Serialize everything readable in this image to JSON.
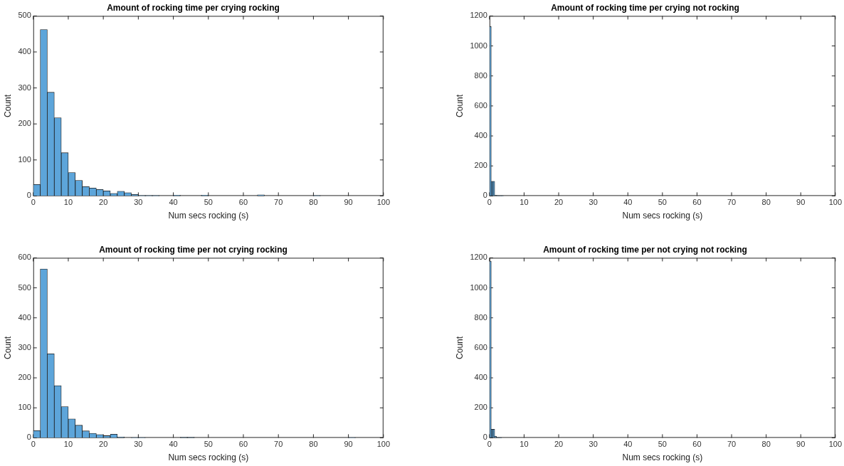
{
  "chart_data": [
    {
      "type": "histogram",
      "title": "Amount of rocking time per crying rocking",
      "xlabel": "Num secs rocking (s)",
      "ylabel": "Count",
      "color": "#5da5da",
      "bins": [
        0,
        2,
        4,
        6,
        8,
        10,
        12,
        14,
        16,
        18,
        20,
        22,
        24,
        26,
        28,
        30,
        32,
        34,
        36,
        38,
        40,
        42,
        44,
        46,
        48,
        50,
        52,
        54,
        56,
        58,
        60,
        62,
        64,
        66,
        68,
        70,
        72,
        74,
        76,
        78,
        80,
        82,
        84,
        86,
        88,
        90,
        92,
        94,
        96,
        98,
        100
      ],
      "values": [
        32,
        462,
        288,
        217,
        120,
        65,
        43,
        26,
        22,
        18,
        14,
        7,
        13,
        9,
        4,
        1,
        1,
        1,
        0,
        0,
        2,
        0,
        0,
        0,
        2,
        0,
        0,
        0,
        0,
        0,
        0,
        0,
        3,
        0,
        0,
        0,
        0,
        0,
        0,
        0,
        1,
        0,
        0,
        0,
        0,
        0,
        0,
        0,
        0,
        0
      ],
      "xlim": [
        0,
        100
      ],
      "xticks": [
        0,
        10,
        20,
        30,
        40,
        50,
        60,
        70,
        80,
        90,
        100
      ],
      "ylim": [
        0,
        500
      ],
      "yticks": [
        0,
        100,
        200,
        300,
        400,
        500
      ]
    },
    {
      "type": "histogram",
      "title": "Amount of rocking time per crying not rocking",
      "xlabel": "Num secs rocking (s)",
      "ylabel": "Count",
      "color": "#5da5da",
      "bins": [
        0,
        0.5,
        1,
        1.5,
        2,
        2.5,
        3,
        3.5,
        4,
        4.5,
        5
      ],
      "values": [
        1130,
        98,
        98,
        4,
        3,
        2,
        1,
        1,
        0,
        0
      ],
      "xlim": [
        0,
        100
      ],
      "xticks": [
        0,
        10,
        20,
        30,
        40,
        50,
        60,
        70,
        80,
        90,
        100
      ],
      "ylim": [
        0,
        1200
      ],
      "yticks": [
        0,
        200,
        400,
        600,
        800,
        1000,
        1200
      ]
    },
    {
      "type": "histogram",
      "title": "Amount of rocking time per not crying rocking",
      "xlabel": "Num secs rocking (s)",
      "ylabel": "Count",
      "color": "#5da5da",
      "bins": [
        0,
        2,
        4,
        6,
        8,
        10,
        12,
        14,
        16,
        18,
        20,
        22,
        24,
        26,
        28,
        30,
        32,
        34,
        36,
        38,
        40,
        42,
        44,
        46,
        48,
        50,
        52,
        54,
        56,
        58,
        60,
        62,
        64,
        66,
        68,
        70,
        72,
        74,
        76,
        78,
        80,
        82,
        84,
        86,
        88,
        90,
        92,
        94,
        96,
        98,
        100
      ],
      "values": [
        24,
        563,
        280,
        174,
        104,
        63,
        42,
        23,
        15,
        11,
        7,
        12,
        3,
        0,
        1,
        1,
        0,
        0,
        0,
        0,
        0,
        2,
        2,
        0,
        0,
        0,
        0,
        0,
        0,
        0,
        0,
        0,
        0,
        0,
        0,
        0,
        0,
        0,
        0,
        0,
        0,
        0,
        0,
        0,
        0,
        1,
        0,
        0,
        0,
        0
      ],
      "xlim": [
        0,
        100
      ],
      "xticks": [
        0,
        10,
        20,
        30,
        40,
        50,
        60,
        70,
        80,
        90,
        100
      ],
      "ylim": [
        0,
        600
      ],
      "yticks": [
        0,
        100,
        200,
        300,
        400,
        500,
        600
      ]
    },
    {
      "type": "histogram",
      "title": "Amount of rocking time per not crying not rocking",
      "xlabel": "Num secs rocking (s)",
      "ylabel": "Count",
      "color": "#5da5da",
      "bins": [
        0,
        0.5,
        1,
        1.5,
        2,
        2.5,
        3,
        3.5,
        4,
        4.5,
        5
      ],
      "values": [
        1178,
        57,
        57,
        11,
        3,
        2,
        1,
        0,
        0,
        0
      ],
      "xlim": [
        0,
        100
      ],
      "xticks": [
        0,
        10,
        20,
        30,
        40,
        50,
        60,
        70,
        80,
        90,
        100
      ],
      "ylim": [
        0,
        1200
      ],
      "yticks": [
        0,
        200,
        400,
        600,
        800,
        1000,
        1200
      ]
    }
  ]
}
